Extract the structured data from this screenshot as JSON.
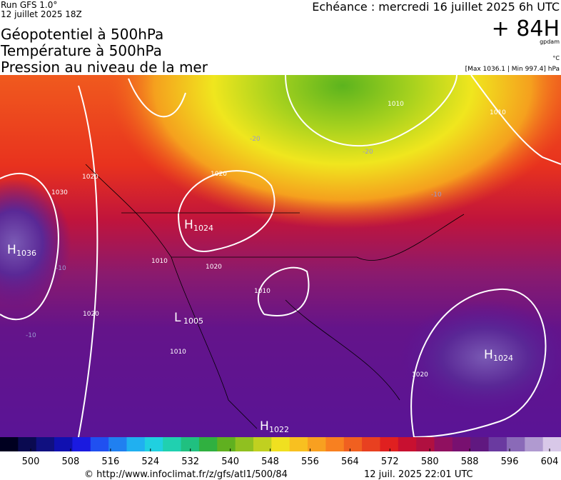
{
  "header": {
    "run": "Run GFS 1.0°",
    "run_date": "12 juillet 2025 18Z",
    "titles": [
      "Géopotentiel à 500hPa",
      "Température à 500hPa",
      "Pression au niveau de la mer"
    ],
    "valid": "Echéance : mercredi 16 juillet 2025 6h UTC",
    "lead": "+ 84H",
    "unit_geo": "gpdam",
    "unit_temp": "°C",
    "pressure_range": "[Max 1036.1 | Min 997.4] hPa"
  },
  "centers": [
    {
      "letter": "H",
      "value": "1036"
    },
    {
      "letter": "H",
      "value": "1024"
    },
    {
      "letter": "L",
      "value": "1005"
    },
    {
      "letter": "H",
      "value": "1024"
    },
    {
      "letter": "H",
      "value": "1022"
    }
  ],
  "isobar_labels": [
    "1020",
    "1030",
    "1020",
    "1010",
    "1020",
    "1010",
    "1020",
    "1010",
    "1020",
    "1010",
    "1010"
  ],
  "temp_labels": [
    "-20",
    "-20",
    "-10",
    "-10",
    "-10"
  ],
  "colorbar": {
    "ticks": [
      500,
      508,
      516,
      524,
      532,
      540,
      548,
      556,
      564,
      572,
      580,
      588,
      596,
      604
    ]
  },
  "footer": {
    "url": "© http://www.infoclimat.fr/z/gfs/atl1/500/84",
    "stamp": "12 juil. 2025 22:01 UTC"
  }
}
